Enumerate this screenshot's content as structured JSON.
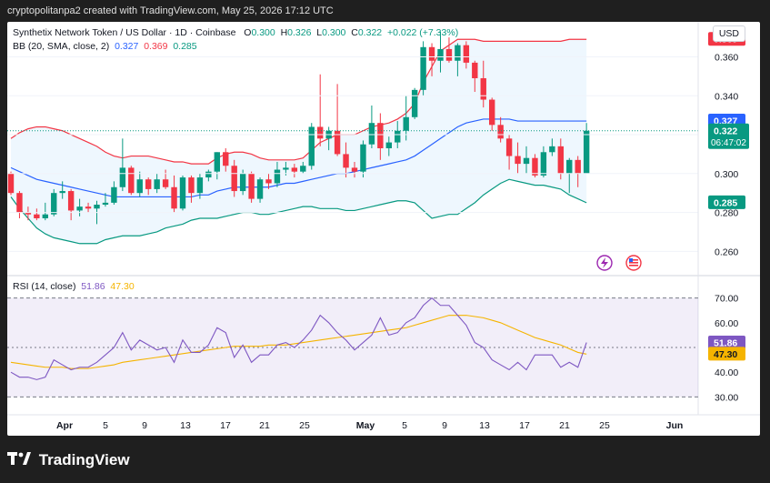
{
  "header": {
    "created_by": "cryptopolitanpa2 created with TradingView.com, May 25, 2026 17:12 UTC"
  },
  "legend": {
    "title": "Synthetix Network Token / US Dollar · 1D · Coinbase",
    "o_label": "O",
    "o": "0.300",
    "h_label": "H",
    "h": "0.326",
    "l_label": "L",
    "l": "0.300",
    "c_label": "C",
    "c": "0.322",
    "change": "+0.022 (+7.33%)",
    "bb_label": "BB (20, SMA, close, 2)",
    "bb_basis": "0.327",
    "bb_upper": "0.369",
    "bb_lower": "0.285",
    "rsi_label": "RSI (14, close)",
    "rsi_value": "51.86",
    "rsi_ma": "47.30"
  },
  "currency": "USD",
  "colors": {
    "up": "#089981",
    "down": "#f23645",
    "bb_basis": "#2962ff",
    "bb_upper": "#f23645",
    "bb_lower": "#089981",
    "rsi": "#7e57c2",
    "rsi_ma": "#f5b400"
  },
  "footer": {
    "brand": "TradingView"
  },
  "chart_data": [
    {
      "type": "candlestick",
      "title": "Synthetix Network Token / US Dollar · 1D · Coinbase",
      "ylabel": "USD",
      "ylim": [
        0.248,
        0.378
      ],
      "y_ticks": [
        0.26,
        0.28,
        0.3,
        0.32,
        0.34,
        0.36
      ],
      "x_ticks": [
        "Apr",
        "5",
        "9",
        "13",
        "17",
        "21",
        "25",
        "May",
        "5",
        "9",
        "13",
        "17",
        "21",
        "25",
        "Jun"
      ],
      "price_badges": {
        "bb_upper": "0.369",
        "bb_basis": "0.327",
        "last": "0.322",
        "countdown": "06:47:02",
        "bb_lower": "0.285"
      },
      "candles": [
        [
          0.3,
          0.301,
          0.289,
          0.29
        ],
        [
          0.29,
          0.291,
          0.277,
          0.28
        ],
        [
          0.28,
          0.283,
          0.276,
          0.279
        ],
        [
          0.279,
          0.282,
          0.276,
          0.277
        ],
        [
          0.277,
          0.285,
          0.276,
          0.279
        ],
        [
          0.279,
          0.292,
          0.278,
          0.29
        ],
        [
          0.29,
          0.296,
          0.287,
          0.291
        ],
        [
          0.291,
          0.292,
          0.276,
          0.281
        ],
        [
          0.281,
          0.287,
          0.278,
          0.283
        ],
        [
          0.283,
          0.285,
          0.28,
          0.282
        ],
        [
          0.282,
          0.286,
          0.274,
          0.284
        ],
        [
          0.284,
          0.29,
          0.283,
          0.285
        ],
        [
          0.285,
          0.296,
          0.284,
          0.293
        ],
        [
          0.293,
          0.318,
          0.291,
          0.303
        ],
        [
          0.303,
          0.304,
          0.289,
          0.29
        ],
        [
          0.29,
          0.301,
          0.288,
          0.297
        ],
        [
          0.297,
          0.298,
          0.289,
          0.292
        ],
        [
          0.292,
          0.3,
          0.29,
          0.297
        ],
        [
          0.297,
          0.302,
          0.292,
          0.293
        ],
        [
          0.293,
          0.299,
          0.28,
          0.282
        ],
        [
          0.282,
          0.299,
          0.281,
          0.298
        ],
        [
          0.298,
          0.299,
          0.285,
          0.29
        ],
        [
          0.29,
          0.3,
          0.287,
          0.298
        ],
        [
          0.298,
          0.302,
          0.296,
          0.301
        ],
        [
          0.301,
          0.311,
          0.297,
          0.311
        ],
        [
          0.311,
          0.313,
          0.301,
          0.304
        ],
        [
          0.304,
          0.307,
          0.288,
          0.291
        ],
        [
          0.291,
          0.302,
          0.289,
          0.3
        ],
        [
          0.3,
          0.301,
          0.285,
          0.287
        ],
        [
          0.287,
          0.298,
          0.285,
          0.297
        ],
        [
          0.297,
          0.3,
          0.292,
          0.295
        ],
        [
          0.295,
          0.306,
          0.293,
          0.302
        ],
        [
          0.302,
          0.306,
          0.299,
          0.303
        ],
        [
          0.303,
          0.305,
          0.298,
          0.301
        ],
        [
          0.301,
          0.306,
          0.3,
          0.304
        ],
        [
          0.304,
          0.326,
          0.302,
          0.324
        ],
        [
          0.324,
          0.351,
          0.314,
          0.318
        ],
        [
          0.318,
          0.324,
          0.312,
          0.322
        ],
        [
          0.322,
          0.346,
          0.309,
          0.31
        ],
        [
          0.31,
          0.316,
          0.298,
          0.303
        ],
        [
          0.303,
          0.306,
          0.298,
          0.301
        ],
        [
          0.301,
          0.317,
          0.298,
          0.315
        ],
        [
          0.315,
          0.335,
          0.313,
          0.326
        ],
        [
          0.326,
          0.331,
          0.307,
          0.313
        ],
        [
          0.313,
          0.319,
          0.309,
          0.316
        ],
        [
          0.316,
          0.327,
          0.313,
          0.322
        ],
        [
          0.322,
          0.34,
          0.317,
          0.329
        ],
        [
          0.329,
          0.344,
          0.328,
          0.343
        ],
        [
          0.343,
          0.368,
          0.34,
          0.365
        ],
        [
          0.365,
          0.367,
          0.35,
          0.358
        ],
        [
          0.358,
          0.373,
          0.352,
          0.364
        ],
        [
          0.364,
          0.37,
          0.357,
          0.358
        ],
        [
          0.358,
          0.367,
          0.35,
          0.366
        ],
        [
          0.366,
          0.368,
          0.354,
          0.357
        ],
        [
          0.357,
          0.358,
          0.342,
          0.349
        ],
        [
          0.349,
          0.358,
          0.334,
          0.338
        ],
        [
          0.338,
          0.339,
          0.322,
          0.325
        ],
        [
          0.325,
          0.329,
          0.316,
          0.318
        ],
        [
          0.318,
          0.32,
          0.302,
          0.309
        ],
        [
          0.309,
          0.316,
          0.3,
          0.305
        ],
        [
          0.305,
          0.314,
          0.3,
          0.308
        ],
        [
          0.308,
          0.31,
          0.298,
          0.299
        ],
        [
          0.299,
          0.314,
          0.298,
          0.311
        ],
        [
          0.311,
          0.318,
          0.309,
          0.314
        ],
        [
          0.314,
          0.318,
          0.297,
          0.3
        ],
        [
          0.3,
          0.308,
          0.29,
          0.307
        ],
        [
          0.307,
          0.309,
          0.293,
          0.3
        ],
        [
          0.3,
          0.326,
          0.3,
          0.322
        ]
      ],
      "bollinger": {
        "upper": [
          0.318,
          0.321,
          0.323,
          0.324,
          0.324,
          0.323,
          0.322,
          0.32,
          0.318,
          0.316,
          0.314,
          0.311,
          0.309,
          0.308,
          0.309,
          0.309,
          0.309,
          0.308,
          0.307,
          0.306,
          0.306,
          0.305,
          0.305,
          0.305,
          0.308,
          0.31,
          0.311,
          0.311,
          0.31,
          0.308,
          0.307,
          0.307,
          0.307,
          0.307,
          0.308,
          0.312,
          0.316,
          0.318,
          0.32,
          0.32,
          0.32,
          0.322,
          0.324,
          0.325,
          0.326,
          0.328,
          0.331,
          0.336,
          0.347,
          0.355,
          0.363,
          0.366,
          0.369,
          0.369,
          0.369,
          0.368,
          0.368,
          0.368,
          0.368,
          0.368,
          0.368,
          0.368,
          0.368,
          0.368,
          0.368,
          0.369,
          0.369,
          0.369
        ],
        "basis": [
          0.303,
          0.301,
          0.299,
          0.297,
          0.296,
          0.295,
          0.294,
          0.293,
          0.292,
          0.291,
          0.29,
          0.289,
          0.288,
          0.288,
          0.288,
          0.288,
          0.288,
          0.288,
          0.288,
          0.288,
          0.288,
          0.288,
          0.289,
          0.289,
          0.291,
          0.292,
          0.293,
          0.293,
          0.293,
          0.293,
          0.293,
          0.294,
          0.295,
          0.295,
          0.296,
          0.297,
          0.298,
          0.299,
          0.3,
          0.3,
          0.301,
          0.302,
          0.303,
          0.304,
          0.305,
          0.306,
          0.307,
          0.309,
          0.312,
          0.315,
          0.318,
          0.321,
          0.324,
          0.326,
          0.327,
          0.328,
          0.328,
          0.328,
          0.328,
          0.327,
          0.327,
          0.327,
          0.327,
          0.327,
          0.327,
          0.327,
          0.327,
          0.327
        ],
        "lower": [
          0.288,
          0.282,
          0.277,
          0.272,
          0.269,
          0.267,
          0.266,
          0.265,
          0.264,
          0.264,
          0.264,
          0.266,
          0.267,
          0.268,
          0.268,
          0.268,
          0.269,
          0.27,
          0.272,
          0.273,
          0.274,
          0.276,
          0.277,
          0.277,
          0.277,
          0.278,
          0.279,
          0.28,
          0.28,
          0.279,
          0.279,
          0.28,
          0.281,
          0.282,
          0.283,
          0.283,
          0.282,
          0.282,
          0.282,
          0.281,
          0.281,
          0.282,
          0.283,
          0.284,
          0.285,
          0.286,
          0.286,
          0.285,
          0.281,
          0.277,
          0.278,
          0.279,
          0.279,
          0.282,
          0.285,
          0.289,
          0.292,
          0.295,
          0.297,
          0.296,
          0.295,
          0.294,
          0.294,
          0.293,
          0.292,
          0.289,
          0.287,
          0.285
        ]
      }
    },
    {
      "type": "line",
      "title": "RSI (14, close)",
      "ylim": [
        25,
        75
      ],
      "y_ticks": [
        30.0,
        40.0,
        50.0,
        60.0,
        70.0
      ],
      "bands": {
        "upper": 70,
        "middle": 50,
        "lower": 30
      },
      "badges": {
        "rsi": "51.86",
        "rsi_ma": "47.30"
      },
      "series": [
        {
          "name": "RSI",
          "values": [
            40,
            38,
            38,
            37,
            38,
            45,
            43,
            41,
            42,
            42,
            44,
            47,
            50,
            56,
            49,
            53,
            51,
            49,
            50,
            44,
            53,
            48,
            48,
            51,
            58,
            56,
            46,
            51,
            44,
            47,
            47,
            51,
            52,
            50,
            53,
            57,
            63,
            60,
            56,
            53,
            49,
            52,
            55,
            62,
            55,
            56,
            60,
            62,
            67,
            70,
            67,
            67,
            63,
            59,
            52,
            50,
            45,
            43,
            41,
            44,
            41,
            47,
            47,
            47,
            42,
            44,
            42,
            52
          ]
        },
        {
          "name": "RSI MA",
          "values": [
            44,
            43.5,
            43,
            42.5,
            42,
            42,
            42,
            41.5,
            41.5,
            41.5,
            42,
            42.5,
            43,
            44,
            44.5,
            45,
            45.5,
            46,
            46.5,
            47,
            47.5,
            48,
            48.5,
            49,
            49.5,
            50,
            50.5,
            50.5,
            50.5,
            50.5,
            51,
            51,
            51,
            51.5,
            52,
            52.5,
            53,
            53.5,
            54,
            54.5,
            55,
            55.5,
            56,
            56.5,
            57,
            57.5,
            58,
            59,
            60,
            61,
            62,
            63,
            63,
            63,
            62.5,
            62,
            61,
            60,
            58.5,
            57,
            55.5,
            54,
            53,
            52,
            51,
            49.5,
            48,
            47.3
          ]
        }
      ]
    }
  ]
}
